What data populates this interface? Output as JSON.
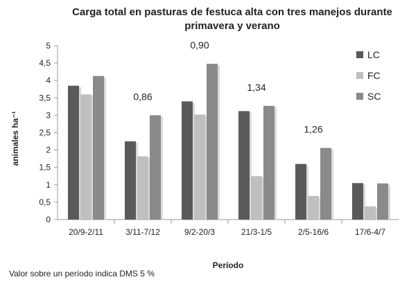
{
  "chart_data": {
    "type": "bar",
    "title_line1": "Carga total en pasturas de festuca alta con tres manejos durante",
    "title_line2": "primavera y verano",
    "xlabel": "Período",
    "ylabel": "animales ha⁻¹",
    "ylim": [
      0,
      5
    ],
    "yticks": [
      "0",
      "0,5",
      "1",
      "1,5",
      "2",
      "2,5",
      "3",
      "3,5",
      "4",
      "4,5",
      "5"
    ],
    "categories": [
      "20/9-2/11",
      "3/11-7/12",
      "9/2-20/3",
      "21/3-1/5",
      "2/5-16/6",
      "17/6-4/7"
    ],
    "series": [
      {
        "name": "LC",
        "color": "#5a5a5a",
        "values": [
          3.85,
          2.25,
          3.4,
          3.12,
          1.6,
          1.05
        ]
      },
      {
        "name": "FC",
        "color": "#bfbfbf",
        "values": [
          3.6,
          1.82,
          3.02,
          1.25,
          0.68,
          0.38
        ]
      },
      {
        "name": "SC",
        "color": "#8a8a8a",
        "values": [
          4.13,
          3.0,
          4.48,
          3.27,
          2.06,
          1.04
        ]
      }
    ],
    "annotations": [
      {
        "category_index": 1,
        "text": "0,86"
      },
      {
        "category_index": 2,
        "text": "0,90"
      },
      {
        "category_index": 3,
        "text": "1,34"
      },
      {
        "category_index": 4,
        "text": "1,26"
      }
    ],
    "legend_position": "top-right",
    "grid": false
  },
  "footnote": "Valor sobre un período indica DMS 5 %"
}
